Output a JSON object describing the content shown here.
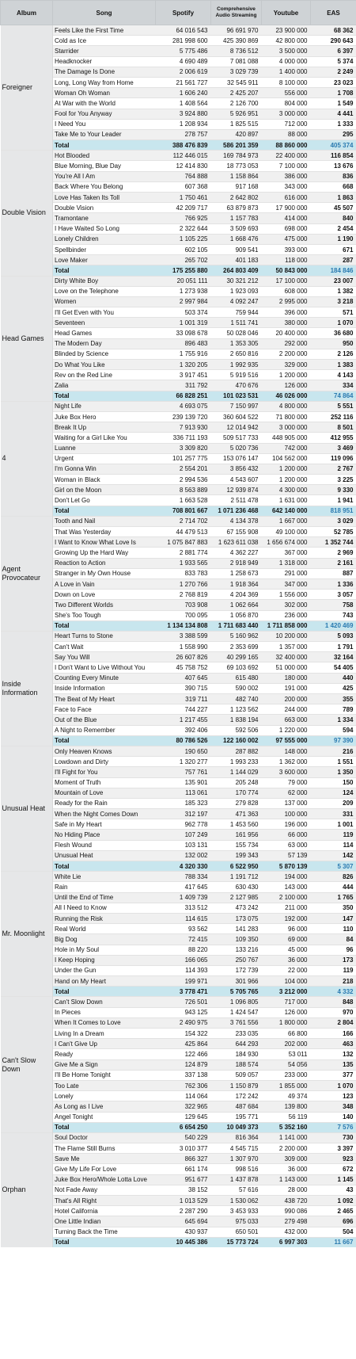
{
  "headers": {
    "album": "Album",
    "song": "Song",
    "spotify": "Spotify",
    "cas": "Comprehensive Audio Streaming",
    "youtube": "Youtube",
    "eas": "EAS"
  },
  "albums": [
    {
      "name": "Foreigner",
      "rows": [
        [
          "Feels Like the First Time",
          "64 016 543",
          "96 691 970",
          "23 900 000",
          "68 362"
        ],
        [
          "Cold as Ice",
          "281 998 600",
          "425 390 869",
          "42 800 000",
          "290 643"
        ],
        [
          "Starrider",
          "5 775 486",
          "8 736 512",
          "3 500 000",
          "6 397"
        ],
        [
          "Headknocker",
          "4 690 489",
          "7 081 088",
          "4 000 000",
          "5 374"
        ],
        [
          "The Damage Is Done",
          "2 006 619",
          "3 029 739",
          "1 400 000",
          "2 249"
        ],
        [
          "Long, Long Way from Home",
          "21 561 727",
          "32 545 911",
          "8 100 000",
          "23 023"
        ],
        [
          "Woman Oh Woman",
          "1 606 240",
          "2 425 207",
          "556 000",
          "1 708"
        ],
        [
          "At War with the World",
          "1 408 564",
          "2 126 700",
          "804 000",
          "1 549"
        ],
        [
          "Fool for You Anyway",
          "3 924 880",
          "5 926 951",
          "3 000 000",
          "4 441"
        ],
        [
          "I Need You",
          "1 208 934",
          "1 825 515",
          "712 000",
          "1 333"
        ],
        [
          "Take Me to Your Leader",
          "278 757",
          "420 897",
          "88 000",
          "295"
        ]
      ],
      "total": [
        "Total",
        "388 476 839",
        "586 201 359",
        "88 860 000",
        "405 374"
      ]
    },
    {
      "name": "Double Vision",
      "rows": [
        [
          "Hot Blooded",
          "112 446 015",
          "169 784 973",
          "22 400 000",
          "116 854"
        ],
        [
          "Blue Morning, Blue Day",
          "12 414 830",
          "18 773 053",
          "7 100 000",
          "13 676"
        ],
        [
          "You're All I Am",
          "764 888",
          "1 158 864",
          "386 000",
          "836"
        ],
        [
          "Back Where You Belong",
          "607 368",
          "917 168",
          "343 000",
          "668"
        ],
        [
          "Love Has Taken Its Toll",
          "1 750 461",
          "2 642 802",
          "616 000",
          "1 863"
        ],
        [
          "Double Vision",
          "42 209 717",
          "63 879 873",
          "17 900 000",
          "45 507"
        ],
        [
          "Tramontane",
          "766 925",
          "1 157 783",
          "414 000",
          "840"
        ],
        [
          "I Have Waited So Long",
          "2 322 644",
          "3 509 693",
          "698 000",
          "2 454"
        ],
        [
          "Lonely Children",
          "1 105 225",
          "1 668 476",
          "475 000",
          "1 190"
        ],
        [
          "Spellbinder",
          "602 105",
          "909 541",
          "393 000",
          "671"
        ],
        [
          "Love Maker",
          "265 702",
          "401 183",
          "118 000",
          "287"
        ]
      ],
      "total": [
        "Total",
        "175 255 880",
        "264 803 409",
        "50 843 000",
        "184 846"
      ]
    },
    {
      "name": "Head Games",
      "rows": [
        [
          "Dirty White Boy",
          "20 051 111",
          "30 321 212",
          "17 100 000",
          "23 007"
        ],
        [
          "Love on the Telephone",
          "1 273 938",
          "1 923 093",
          "608 000",
          "1 382"
        ],
        [
          "Women",
          "2 997 984",
          "4 092 247",
          "2 995 000",
          "3 218"
        ],
        [
          "I'll Get Even with You",
          "503 374",
          "759 944",
          "396 000",
          "571"
        ],
        [
          "Seventeen",
          "1 001 319",
          "1 511 741",
          "380 000",
          "1 070"
        ],
        [
          "Head Games",
          "33 098 678",
          "50 028 046",
          "20 400 000",
          "36 680"
        ],
        [
          "The Modern Day",
          "896 483",
          "1 353 305",
          "292 000",
          "950"
        ],
        [
          "Blinded by Science",
          "1 755 916",
          "2 650 816",
          "2 200 000",
          "2 126"
        ],
        [
          "Do What You Like",
          "1 320 205",
          "1 992 935",
          "329 000",
          "1 383"
        ],
        [
          "Rev on the Red Line",
          "3 917 451",
          "5 919 516",
          "1 200 000",
          "4 143"
        ],
        [
          "Zalia",
          "311 792",
          "470 676",
          "126 000",
          "334"
        ]
      ],
      "total": [
        "Total",
        "66 828 251",
        "101 023 531",
        "46 026 000",
        "74 864"
      ]
    },
    {
      "name": "4",
      "rows": [
        [
          "Night Life",
          "4 693 075",
          "7 150 997",
          "4 800 000",
          "5 551"
        ],
        [
          "Juke Box Hero",
          "239 139 720",
          "360 604 522",
          "71 800 000",
          "252 116"
        ],
        [
          "Break It Up",
          "7 913 930",
          "12 014 942",
          "3 000 000",
          "8 501"
        ],
        [
          "Waiting for a Girl Like You",
          "336 711 193",
          "509 517 733",
          "448 905 000",
          "412 955"
        ],
        [
          "Luanne",
          "3 309 820",
          "5 020 736",
          "742 000",
          "3 469"
        ],
        [
          "Urgent",
          "101 257 775",
          "153 076 147",
          "104 562 000",
          "119 096"
        ],
        [
          "I'm Gonna Win",
          "2 554 201",
          "3 856 432",
          "1 200 000",
          "2 767"
        ],
        [
          "Woman in Black",
          "2 994 536",
          "4 543 607",
          "1 200 000",
          "3 225"
        ],
        [
          "Girl on the Moon",
          "8 563 889",
          "12 939 874",
          "4 300 000",
          "9 330"
        ],
        [
          "Don't Let Go",
          "1 663 528",
          "2 511 478",
          "1 631 000",
          "1 941"
        ]
      ],
      "total": [
        "Total",
        "708 801 667",
        "1 071 236 468",
        "642 140 000",
        "818 951"
      ]
    },
    {
      "name": "Agent Provocateur",
      "rows": [
        [
          "Tooth and Nail",
          "2 714 702",
          "4 134 378",
          "1 667 000",
          "3 029"
        ],
        [
          "That Was Yesterday",
          "44 479 513",
          "67 155 908",
          "49 100 000",
          "52 785"
        ],
        [
          "I Want to Know What Love Is",
          "1 075 847 883",
          "1 623 611 038",
          "1 656 674 000",
          "1 352 744"
        ],
        [
          "Growing Up the Hard Way",
          "2 881 774",
          "4 362 227",
          "367 000",
          "2 969"
        ],
        [
          "Reaction to Action",
          "1 933 565",
          "2 918 949",
          "1 318 000",
          "2 161"
        ],
        [
          "Stranger in My Own House",
          "833 783",
          "1 258 673",
          "291 000",
          "887"
        ],
        [
          "A Love in Vain",
          "1 270 766",
          "1 918 364",
          "347 000",
          "1 336"
        ],
        [
          "Down on Love",
          "2 768 819",
          "4 204 369",
          "1 556 000",
          "3 057"
        ],
        [
          "Two Different Worlds",
          "703 908",
          "1 062 664",
          "302 000",
          "758"
        ],
        [
          "She's Too Tough",
          "700 095",
          "1 056 870",
          "236 000",
          "743"
        ]
      ],
      "total": [
        "Total",
        "1 134 134 808",
        "1 711 683 440",
        "1 711 858 000",
        "1 420 469"
      ]
    },
    {
      "name": "Inside Information",
      "rows": [
        [
          "Heart Turns to Stone",
          "3 388 599",
          "5 160 962",
          "10 200 000",
          "5 093"
        ],
        [
          "Can't Wait",
          "1 558 990",
          "2 353 699",
          "1 357 000",
          "1 791"
        ],
        [
          "Say You Will",
          "26 607 826",
          "40 299 165",
          "32 400 000",
          "32 164"
        ],
        [
          "I Don't Want to Live Without You",
          "45 758 752",
          "69 103 692",
          "51 000 000",
          "54 405"
        ],
        [
          "Counting Every Minute",
          "407 645",
          "615 480",
          "180 000",
          "440"
        ],
        [
          "Inside Information",
          "390 715",
          "590 002",
          "191 000",
          "425"
        ],
        [
          "The Beat of My Heart",
          "319 711",
          "482 740",
          "200 000",
          "355"
        ],
        [
          "Face to Face",
          "744 227",
          "1 123 562",
          "244 000",
          "789"
        ],
        [
          "Out of the Blue",
          "1 217 455",
          "1 838 194",
          "663 000",
          "1 334"
        ],
        [
          "A Night to Remember",
          "392 406",
          "592 506",
          "1 220 000",
          "594"
        ]
      ],
      "total": [
        "Total",
        "80 786 526",
        "122 160 002",
        "97 555 000",
        "97 390"
      ]
    },
    {
      "name": "Unusual Heat",
      "rows": [
        [
          "Only Heaven Knows",
          "190 650",
          "287 882",
          "148 000",
          "216"
        ],
        [
          "Lowdown and Dirty",
          "1 320 277",
          "1 993 233",
          "1 362 000",
          "1 551"
        ],
        [
          "I'll Fight for You",
          "757 761",
          "1 144 029",
          "3 600 000",
          "1 350"
        ],
        [
          "Moment of Truth",
          "135 901",
          "205 248",
          "79 000",
          "150"
        ],
        [
          "Mountain of Love",
          "113 061",
          "170 774",
          "62 000",
          "124"
        ],
        [
          "Ready for the Rain",
          "185 323",
          "279 828",
          "137 000",
          "209"
        ],
        [
          "When the Night Comes Down",
          "312 197",
          "471 363",
          "100 000",
          "331"
        ],
        [
          "Safe in My Heart",
          "962 778",
          "1 453 560",
          "196 000",
          "1 001"
        ],
        [
          "No Hiding Place",
          "107 249",
          "161 956",
          "66 000",
          "119"
        ],
        [
          "Flesh Wound",
          "103 131",
          "155 734",
          "63 000",
          "114"
        ],
        [
          "Unusual Heat",
          "132 002",
          "199 343",
          "57 139",
          "142"
        ]
      ],
      "total": [
        "Total",
        "4 320 330",
        "6 522 950",
        "5 870 139",
        "5 307"
      ]
    },
    {
      "name": "Mr. Moonlight",
      "rows": [
        [
          "White Lie",
          "788 334",
          "1 191 712",
          "194 000",
          "826"
        ],
        [
          "Rain",
          "417 645",
          "630 430",
          "143 000",
          "444"
        ],
        [
          "Until the End of Time",
          "1 409 739",
          "2 127 985",
          "2 100 000",
          "1 765"
        ],
        [
          "All I Need to Know",
          "313 512",
          "473 242",
          "211 000",
          "350"
        ],
        [
          "Running the Risk",
          "114 615",
          "173 075",
          "192 000",
          "147"
        ],
        [
          "Real World",
          "93 562",
          "141 283",
          "96 000",
          "110"
        ],
        [
          "Big Dog",
          "72 415",
          "109 350",
          "69 000",
          "84"
        ],
        [
          "Hole in My Soul",
          "88 220",
          "133 216",
          "45 000",
          "96"
        ],
        [
          "I Keep Hoping",
          "166 065",
          "250 767",
          "36 000",
          "173"
        ],
        [
          "Under the Gun",
          "114 393",
          "172 739",
          "22 000",
          "119"
        ],
        [
          "Hand on My Heart",
          "199 971",
          "301 966",
          "104 000",
          "218"
        ]
      ],
      "total": [
        "Total",
        "3 778 471",
        "5 705 765",
        "3 212 000",
        "4 332"
      ]
    },
    {
      "name": "Can't Slow Down",
      "rows": [
        [
          "Can't Slow Down",
          "726 501",
          "1 096 805",
          "717 000",
          "848"
        ],
        [
          "In Pieces",
          "943 125",
          "1 424 547",
          "126 000",
          "970"
        ],
        [
          "When It Comes to Love",
          "2 490 975",
          "3 761 556",
          "1 800 000",
          "2 804"
        ],
        [
          "Living In a Dream",
          "154 322",
          "233 035",
          "66 800",
          "166"
        ],
        [
          "I Can't Give Up",
          "425 864",
          "644 293",
          "202 000",
          "463"
        ],
        [
          "Ready",
          "122 466",
          "184 930",
          "53 011",
          "132"
        ],
        [
          "Give Me a Sign",
          "124 879",
          "188 574",
          "54 056",
          "135"
        ],
        [
          "I'll Be Home Tonight",
          "337 138",
          "509 057",
          "233 000",
          "377"
        ],
        [
          "Too Late",
          "762 306",
          "1 150 879",
          "1 855 000",
          "1 070"
        ],
        [
          "Lonely",
          "114 064",
          "172 242",
          "49 374",
          "123"
        ],
        [
          "As Long as I Live",
          "322 965",
          "487 684",
          "139 800",
          "348"
        ],
        [
          "Angel Tonight",
          "129 645",
          "195 771",
          "56 119",
          "140"
        ]
      ],
      "total": [
        "Total",
        "6 654 250",
        "10 049 373",
        "5 352 160",
        "7 576"
      ]
    },
    {
      "name": "Orphan",
      "rows": [
        [
          "Soul Doctor",
          "540 229",
          "816 364",
          "1 141 000",
          "730"
        ],
        [
          "The Flame Still Burns",
          "3 010 377",
          "4 545 715",
          "2 200 000",
          "3 397"
        ],
        [
          "Save Me",
          "866 327",
          "1 307 970",
          "309 000",
          "923"
        ],
        [
          "Give My Life For Love",
          "661 174",
          "998 516",
          "36 000",
          "672"
        ],
        [
          "Juke Box Hero/Whole Lotta Love",
          "951 677",
          "1 437 878",
          "1 143 000",
          "1 145"
        ],
        [
          "Not Fade Away",
          "38 152",
          "57 616",
          "28 000",
          "43"
        ],
        [
          "That's All Right",
          "1 013 529",
          "1 530 062",
          "438 720",
          "1 092"
        ],
        [
          "Hotel California",
          "2 287 290",
          "3 453 933",
          "990 086",
          "2 465"
        ],
        [
          "One Little Indian",
          "645 694",
          "975 033",
          "279 498",
          "696"
        ],
        [
          "Turning Back the Time",
          "430 937",
          "650 501",
          "432 000",
          "504"
        ]
      ],
      "total": [
        "Total",
        "10 445 386",
        "15 773 724",
        "6 997 303",
        "11 667"
      ]
    }
  ]
}
